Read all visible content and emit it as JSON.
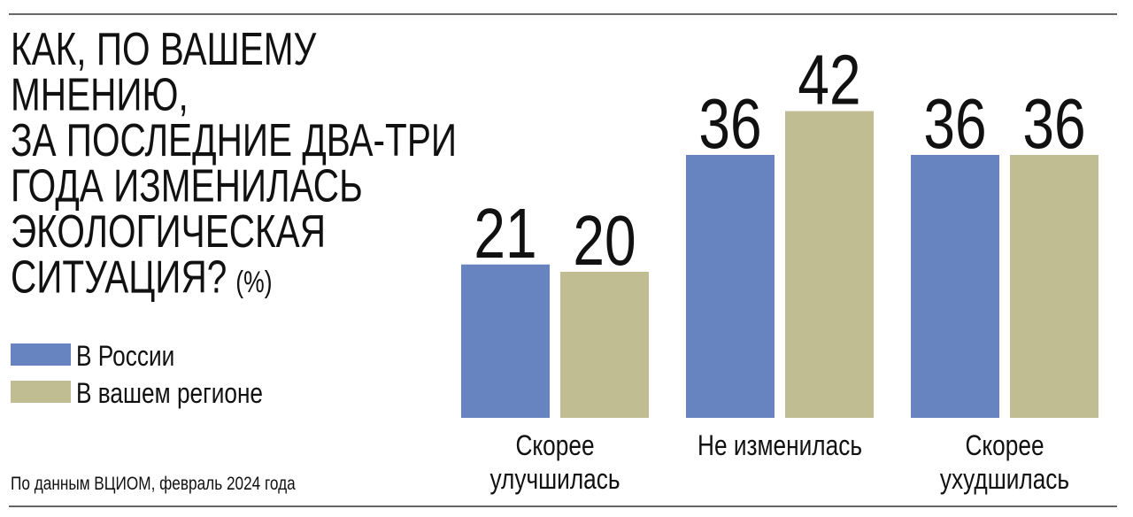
{
  "chart_data": {
    "type": "bar",
    "title": [
      "КАК, ПО ВАШЕМУ",
      "МНЕНИЮ,",
      "ЗА ПОСЛЕДНИЕ ДВА-ТРИ",
      "ГОДА ИЗМЕНИЛАСЬ",
      "ЭКОЛОГИЧЕСКАЯ",
      "СИТУАЦИЯ?"
    ],
    "unit": "(%)",
    "categories": [
      "Скорее\nулучшилась",
      "Не изменилась",
      "Скорее\nухудшилась"
    ],
    "series": [
      {
        "name": "В России",
        "color": "#6783c0",
        "values": [
          21,
          36,
          36
        ]
      },
      {
        "name": "В вашем регионе",
        "color": "#bfbd91",
        "values": [
          20,
          42,
          36
        ]
      }
    ],
    "source": "По данным ВЦИОМ, февраль 2024 года"
  }
}
